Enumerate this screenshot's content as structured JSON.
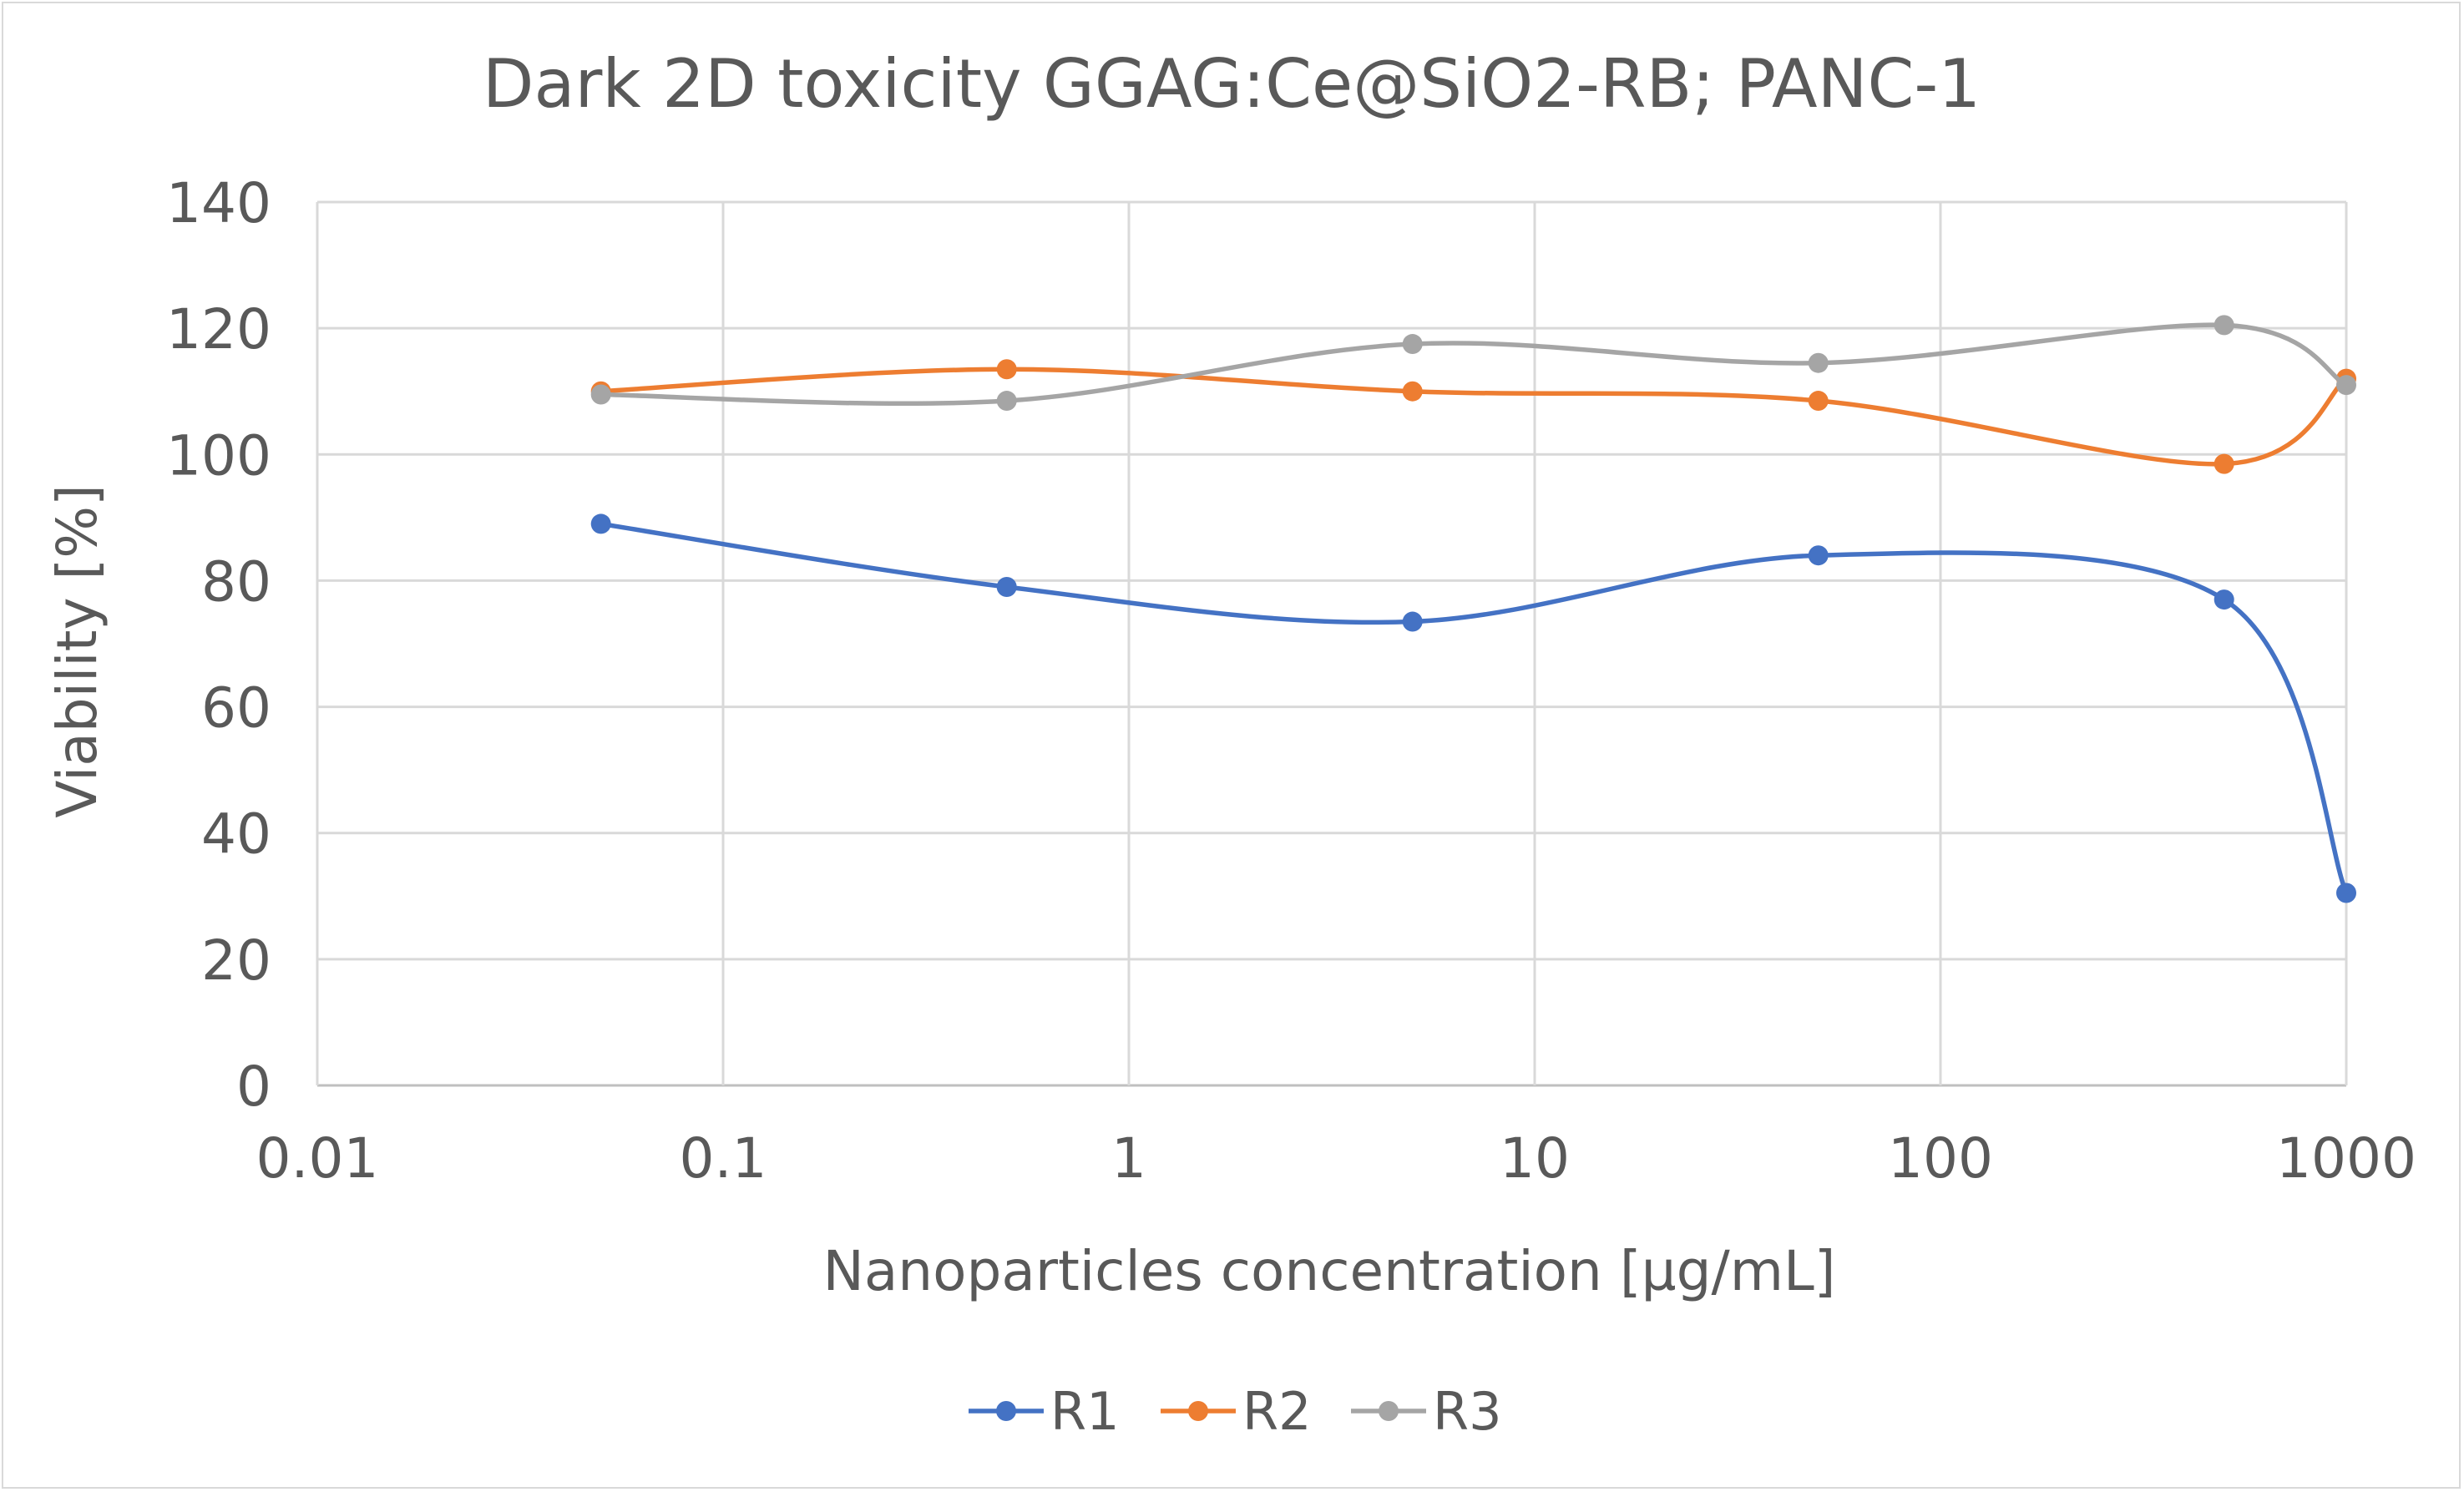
{
  "chart_data": {
    "type": "line",
    "title": "Dark 2D toxicity GGAG:Ce@SiO2-RB; PANC-1",
    "xlabel": "Nanoparticles concentration [µg/mL]",
    "ylabel": "Viability [%]",
    "xscale": "log",
    "xlim": [
      0.01,
      1000
    ],
    "ylim": [
      0,
      140
    ],
    "x_ticks": [
      "0.01",
      "0.1",
      "1",
      "10",
      "100",
      "1000"
    ],
    "y_ticks": [
      "0",
      "20",
      "40",
      "60",
      "80",
      "100",
      "120",
      "140"
    ],
    "grid": true,
    "smooth": true,
    "legend_position": "bottom",
    "x": [
      0.05,
      0.5,
      5,
      50,
      500,
      1000
    ],
    "series": [
      {
        "name": "R1",
        "color": "#4472c4",
        "values": [
          89,
          79,
          73.5,
          84,
          77,
          30.5
        ]
      },
      {
        "name": "R2",
        "color": "#ed7d31",
        "values": [
          110,
          113.5,
          110,
          108.5,
          98.5,
          112
        ]
      },
      {
        "name": "R3",
        "color": "#a5a5a5",
        "values": [
          109.5,
          108.5,
          117.5,
          114.5,
          120.5,
          111
        ]
      }
    ]
  }
}
